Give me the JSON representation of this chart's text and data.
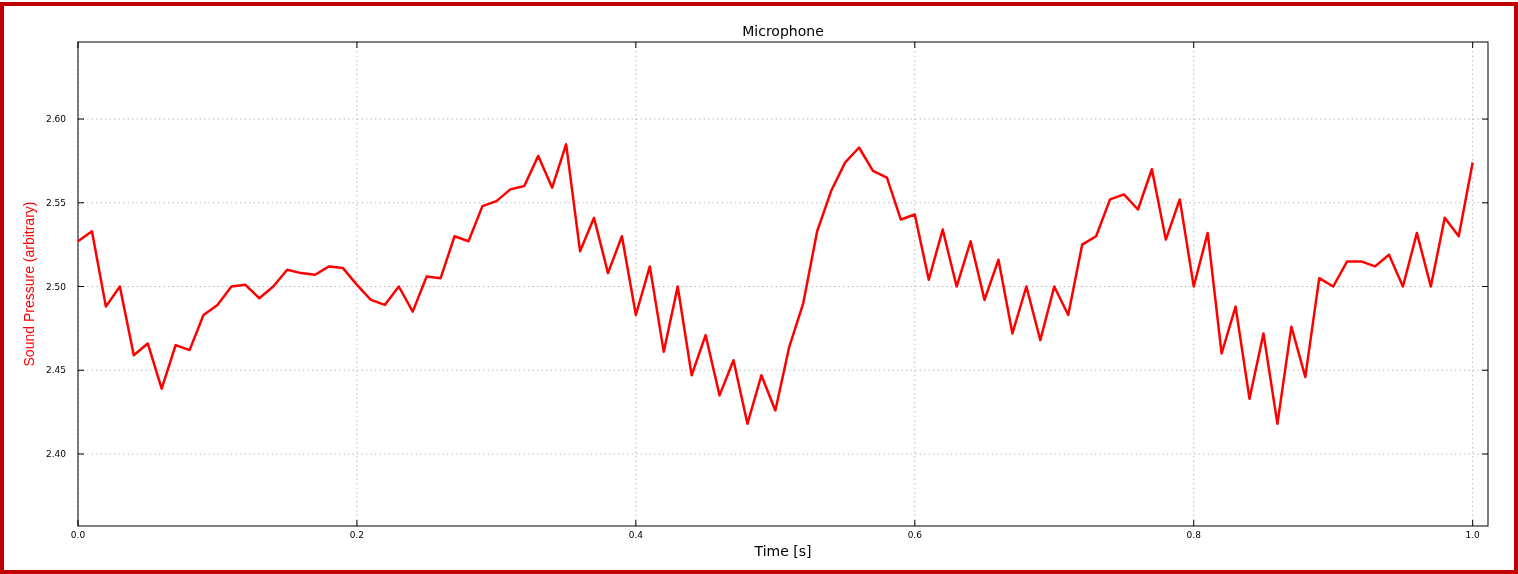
{
  "chart_data": {
    "type": "line",
    "title": "Microphone",
    "xlabel": "Time [s]",
    "ylabel": "Sound Pressure (arbitrary)",
    "x": [
      0,
      0.01,
      0.02,
      0.03,
      0.04,
      0.05,
      0.06,
      0.07,
      0.08,
      0.09,
      0.1,
      0.11,
      0.12,
      0.13,
      0.14,
      0.15,
      0.16,
      0.17,
      0.18,
      0.19,
      0.2,
      0.21,
      0.22,
      0.23,
      0.24,
      0.25,
      0.26,
      0.27,
      0.28,
      0.29,
      0.3,
      0.31,
      0.32,
      0.33,
      0.34,
      0.35,
      0.36,
      0.37,
      0.38,
      0.39,
      0.4,
      0.41,
      0.42,
      0.43,
      0.44,
      0.45,
      0.46,
      0.47,
      0.48,
      0.49,
      0.5,
      0.51,
      0.52,
      0.53,
      0.54,
      0.55,
      0.56,
      0.57,
      0.58,
      0.59,
      0.6,
      0.61,
      0.62,
      0.63,
      0.64,
      0.65,
      0.66,
      0.67,
      0.68,
      0.69,
      0.7,
      0.71,
      0.72,
      0.73,
      0.74,
      0.75,
      0.76,
      0.77,
      0.78,
      0.79,
      0.8,
      0.81,
      0.82,
      0.83,
      0.84,
      0.85,
      0.86,
      0.87,
      0.88,
      0.89,
      0.9,
      0.91,
      0.92,
      0.93,
      0.94,
      0.95,
      0.96,
      0.97,
      0.98,
      0.99,
      1.0
    ],
    "series": [
      {
        "color": "#ff0000",
        "values": [
          2.527,
          2.533,
          2.488,
          2.5,
          2.459,
          2.466,
          2.439,
          2.465,
          2.462,
          2.483,
          2.489,
          2.5,
          2.501,
          2.493,
          2.5,
          2.51,
          2.508,
          2.507,
          2.512,
          2.511,
          2.501,
          2.492,
          2.489,
          2.5,
          2.485,
          2.506,
          2.505,
          2.53,
          2.527,
          2.548,
          2.551,
          2.558,
          2.56,
          2.578,
          2.559,
          2.585,
          2.521,
          2.541,
          2.508,
          2.53,
          2.483,
          2.512,
          2.461,
          2.5,
          2.447,
          2.471,
          2.435,
          2.456,
          2.418,
          2.447,
          2.426,
          2.464,
          2.49,
          2.533,
          2.557,
          2.574,
          2.583,
          2.569,
          2.565,
          2.54,
          2.543,
          2.504,
          2.534,
          2.5,
          2.527,
          2.492,
          2.516,
          2.472,
          2.5,
          2.468,
          2.5,
          2.483,
          2.525,
          2.53,
          2.552,
          2.555,
          2.546,
          2.57,
          2.528,
          2.552,
          2.5,
          2.532,
          2.46,
          2.488,
          2.433,
          2.472,
          2.418,
          2.476,
          2.446,
          2.505,
          2.5,
          2.515,
          2.515,
          2.512,
          2.519,
          2.5,
          2.532,
          2.5,
          2.541,
          2.53,
          2.574
        ]
      }
    ],
    "xlim": [
      0,
      1.011
    ],
    "ylim": [
      2.357,
      2.646
    ],
    "xticks": [
      {
        "value": 0,
        "label": "0.0"
      },
      0.2,
      0.4,
      0.6,
      0.8,
      {
        "value": 1,
        "label": "1.0"
      }
    ],
    "yticks": [
      {
        "value": 2.4,
        "label": "2.40"
      },
      {
        "value": 2.45,
        "label": "2.45"
      },
      {
        "value": 2.5,
        "label": "2.50"
      },
      {
        "value": 2.55,
        "label": "2.55"
      },
      {
        "value": 2.6,
        "label": "2.60"
      }
    ],
    "grid": true,
    "marker": "none",
    "line_style": "solid"
  }
}
